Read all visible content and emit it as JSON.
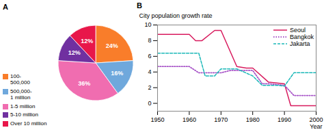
{
  "chart_data": [
    {
      "type": "pie",
      "title": "A",
      "categories": [
        "100-\n500,000",
        "500,000-\n1 million",
        "1-5 million",
        "5-10 million",
        "Over 10 million"
      ],
      "values": [
        24,
        16,
        36,
        12,
        12
      ],
      "value_labels": [
        "24%",
        "16%",
        "36%",
        "12%",
        "12%"
      ],
      "colors": [
        "#f97d2a",
        "#6fa8dc",
        "#f06db0",
        "#7030a0",
        "#e8174a"
      ],
      "data_labels": true,
      "legend": "lower left"
    },
    {
      "type": "line",
      "title": "B",
      "xlabel": "Year",
      "ylabel": "City population growth rate",
      "xlim": [
        1950,
        2000
      ],
      "ylim": [
        -1,
        10
      ],
      "xticks": [
        1950,
        1960,
        1970,
        1980,
        1990,
        2000
      ],
      "yticks": [
        0,
        2,
        4,
        6,
        8,
        10
      ],
      "legend": "upper right",
      "series": [
        {
          "name": "Seoul",
          "color": "#d81b5e",
          "line_style": "solid",
          "x": [
            1950,
            1960,
            1962,
            1964,
            1968,
            1970,
            1975,
            1978,
            1980,
            1985,
            1990,
            1992,
            2000
          ],
          "values": [
            8.8,
            8.8,
            8.0,
            8.0,
            9.3,
            9.3,
            4.7,
            4.5,
            4.5,
            2.7,
            2.5,
            -0.3,
            -0.3
          ]
        },
        {
          "name": "Bangkok",
          "color": "#a855c8",
          "line_style": "dotted",
          "x": [
            1950,
            1960,
            1963,
            1970,
            1973,
            1980,
            1983,
            1985,
            1990,
            1993,
            2000
          ],
          "values": [
            4.7,
            4.7,
            3.9,
            3.9,
            4.2,
            4.2,
            2.5,
            2.5,
            2.3,
            1.0,
            1.0
          ]
        },
        {
          "name": "Jakarta",
          "color": "#1ab8b8",
          "line_style": "dashed",
          "x": [
            1950,
            1963,
            1965,
            1968,
            1970,
            1975,
            1980,
            1983,
            1988,
            1990,
            1993,
            2000
          ],
          "values": [
            6.4,
            6.4,
            3.5,
            3.5,
            4.4,
            4.4,
            3.5,
            2.3,
            2.3,
            2.2,
            3.9,
            3.9
          ]
        }
      ]
    }
  ]
}
